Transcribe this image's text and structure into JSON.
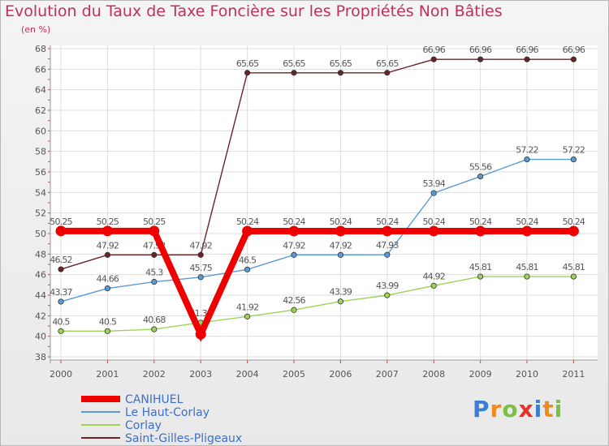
{
  "chart_data": {
    "type": "line",
    "title": "Evolution du Taux de Taxe Foncière sur les Propriétés Non Bâties",
    "ylabel": "(en %)",
    "xlabel": "",
    "ylim": [
      38,
      68
    ],
    "yticks": [
      "38",
      "40",
      "42",
      "44",
      "46",
      "48",
      "50",
      "52",
      "54",
      "56",
      "58",
      "60",
      "62",
      "64",
      "66",
      "68"
    ],
    "categories": [
      "2000",
      "2001",
      "2002",
      "2003",
      "2004",
      "2005",
      "2006",
      "2007",
      "2008",
      "2009",
      "2010",
      "2011"
    ],
    "series": [
      {
        "name": "Saint-Gilles-Pligeaux",
        "color": "#6b2426",
        "values": [
          46.52,
          47.92,
          47.92,
          47.92,
          65.65,
          65.65,
          65.65,
          65.65,
          66.96,
          66.96,
          66.96,
          66.96
        ],
        "labels": [
          "46.52",
          "47.92",
          "47.92",
          "47.92",
          "65.65",
          "65.65",
          "65.65",
          "65.65",
          "66.96",
          "66.96",
          "66.96",
          "66.96"
        ]
      },
      {
        "name": "Le Haut-Corlay",
        "color": "#5b9bd5",
        "values": [
          43.37,
          44.66,
          45.3,
          45.75,
          46.5,
          47.92,
          47.92,
          47.93,
          53.94,
          55.56,
          57.22,
          57.22
        ],
        "labels": [
          "43.37",
          "44.66",
          "45.3",
          "45.75",
          "46.5",
          "47.92",
          "47.92",
          "47.93",
          "53.94",
          "55.56",
          "57.22",
          "57.22"
        ]
      },
      {
        "name": "Corlay",
        "color": "#9ed35a",
        "values": [
          40.5,
          40.5,
          40.68,
          41.33,
          41.92,
          42.56,
          43.39,
          43.99,
          44.92,
          45.81,
          45.81,
          45.81
        ],
        "labels": [
          "40.5",
          "40.5",
          "40.68",
          "41.33",
          "41.92",
          "42.56",
          "43.39",
          "43.99",
          "44.92",
          "45.81",
          "45.81",
          "45.81"
        ]
      },
      {
        "name": "CANIHUEL",
        "color": "#ee0000",
        "values": [
          50.25,
          50.25,
          50.25,
          40.2,
          50.24,
          50.24,
          50.24,
          50.24,
          50.24,
          50.24,
          50.24,
          50.24
        ],
        "labels": [
          "50.25",
          "50.25",
          "50.25",
          "",
          "50.24",
          "50.24",
          "50.24",
          "50.24",
          "50.24",
          "50.24",
          "50.24",
          "50.24"
        ]
      }
    ],
    "legend_order": [
      "CANIHUEL",
      "Le Haut-Corlay",
      "Corlay",
      "Saint-Gilles-Pligeaux"
    ],
    "legend_position": "bottom-left",
    "grid": true
  },
  "branding": {
    "letters": [
      "P",
      "r",
      "o",
      "x",
      "i",
      "t",
      "i"
    ],
    "colors": [
      "#3a7fd5",
      "#f08a1c",
      "#7ac143",
      "#e5332a",
      "#3a7fd5",
      "#f08a1c",
      "#7ac143"
    ]
  }
}
